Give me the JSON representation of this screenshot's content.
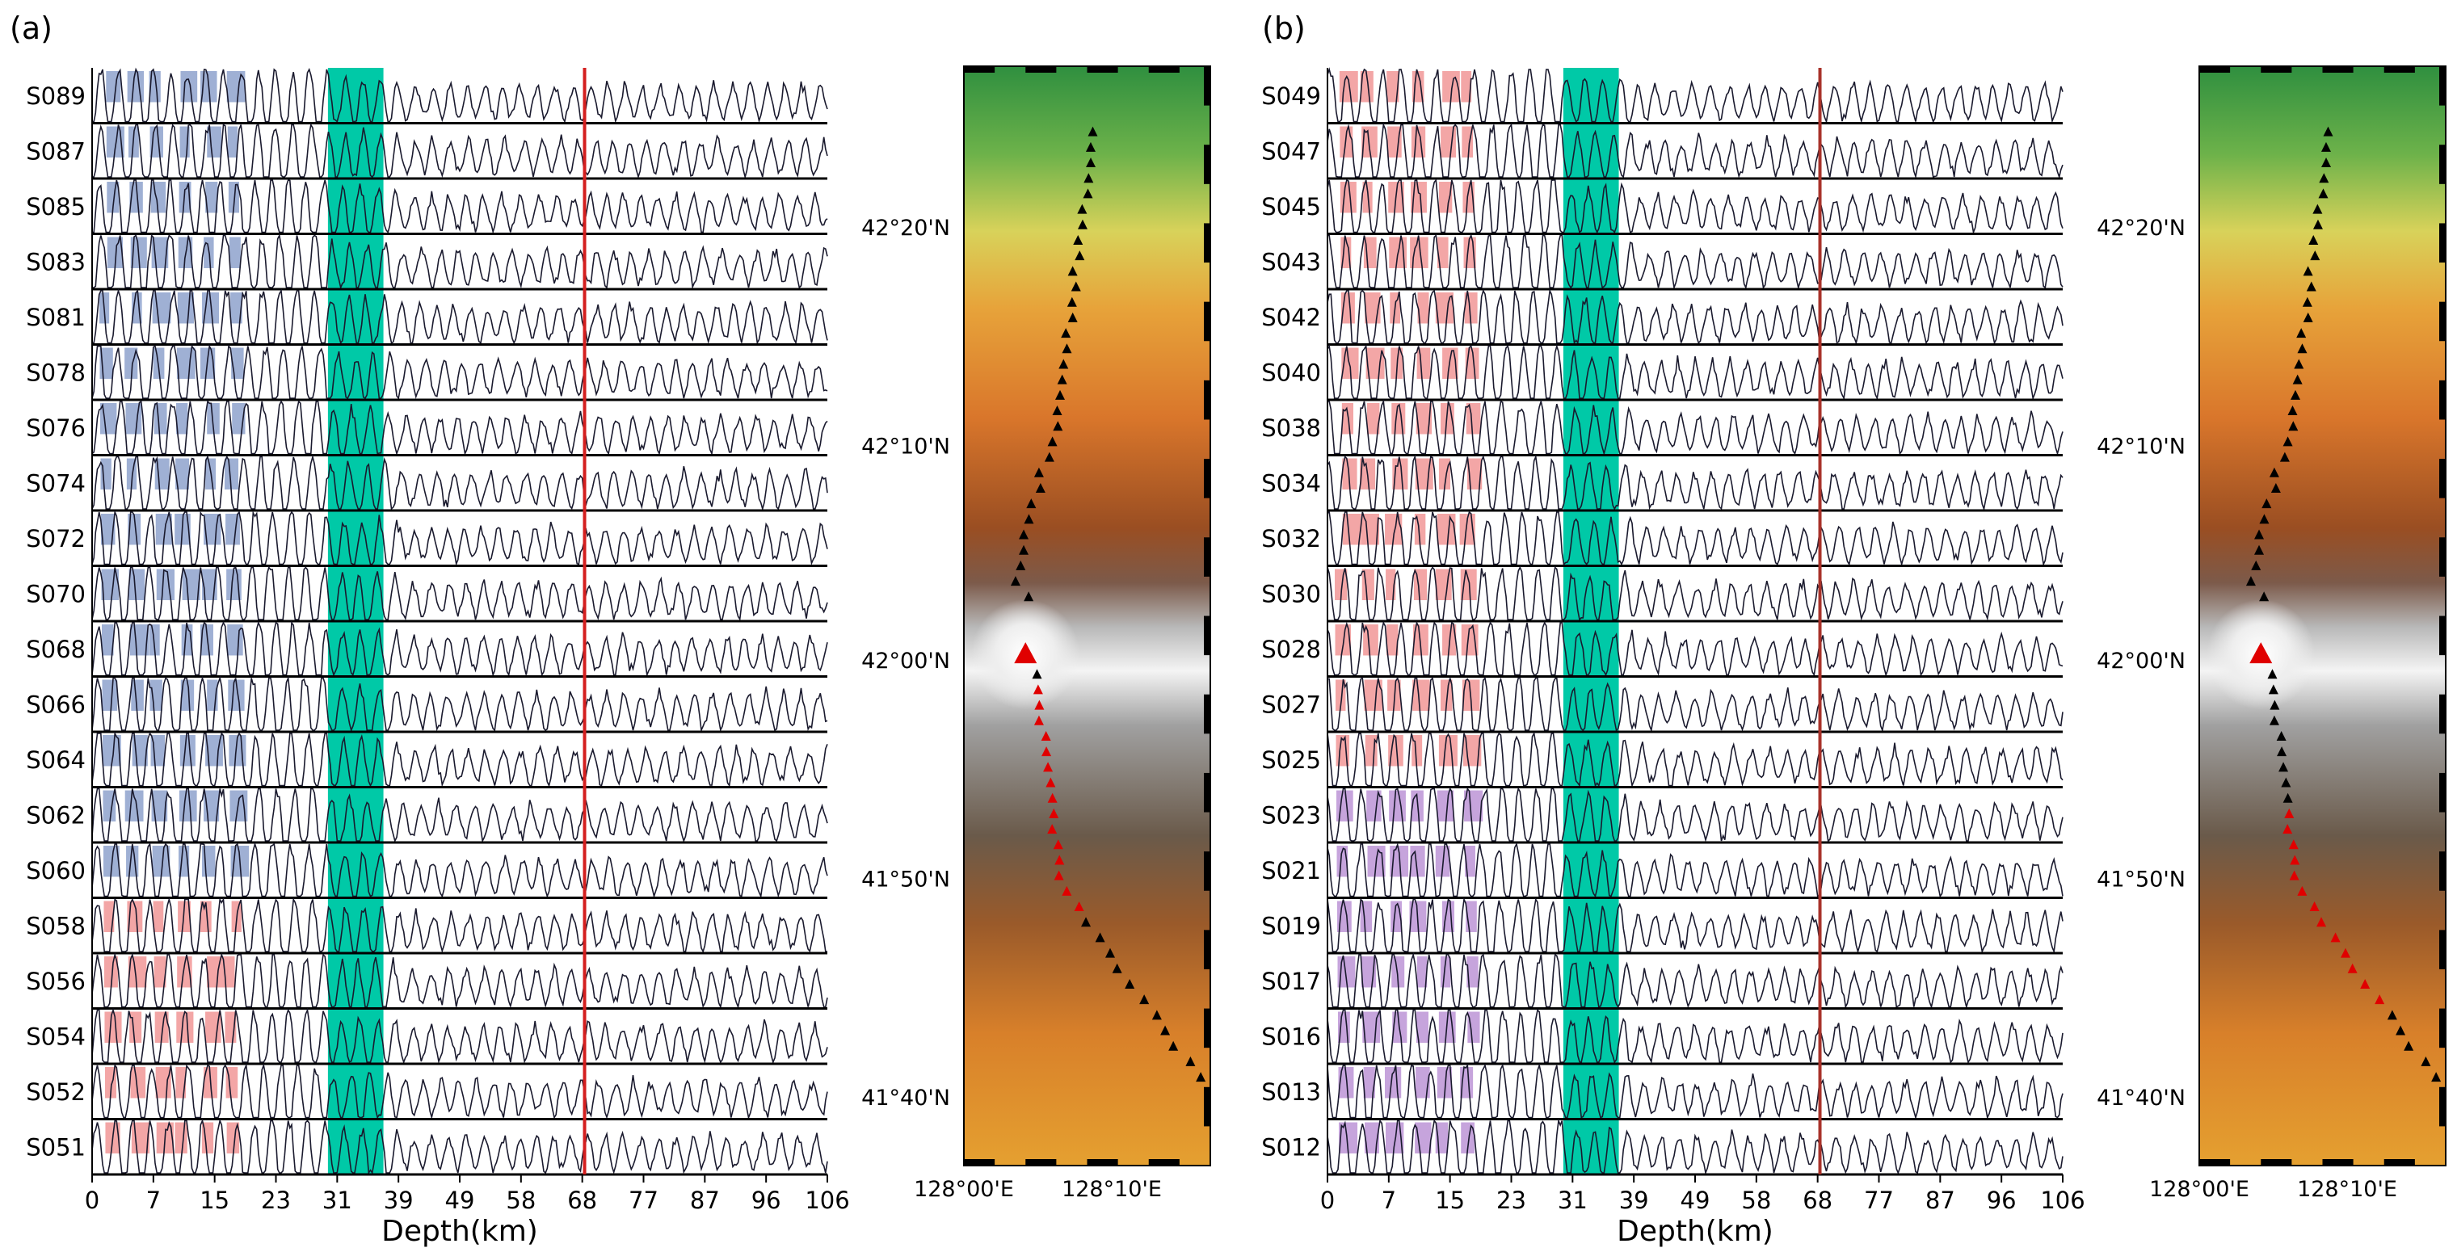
{
  "colors": {
    "panel_a_fill": "#9fb0d4",
    "panel_b_fill_top": "#f3a6a6",
    "panel_b_fill_bottom": "#c6a4dc",
    "panel_a_fill_bottom": "#f3a6a6",
    "highlight_band": "#00c9a7",
    "vertical_line_a": "#d41f1f",
    "vertical_line_b": "#a8322a",
    "highlight_station": "#ff0000",
    "trace_line": "#1a1a2e"
  },
  "chart_data": [
    {
      "type": "line",
      "panel_label": "(a)",
      "title": "",
      "xlabel": "Depth(km)",
      "xlim": [
        0,
        106
      ],
      "xticks": [
        "0",
        "7",
        "15",
        "23",
        "31",
        "39",
        "49",
        "58",
        "68",
        "77",
        "87",
        "96",
        "106"
      ],
      "highlight_band_km": [
        34,
        42
      ],
      "vertical_line_km": 71,
      "highlighted_station": "S058",
      "stations": [
        "S089",
        "S087",
        "S085",
        "S083",
        "S081",
        "S078",
        "S076",
        "S074",
        "S072",
        "S070",
        "S068",
        "S066",
        "S064",
        "S062",
        "S060",
        "S058",
        "S056",
        "S054",
        "S052",
        "S051"
      ],
      "series_note": "receiver-function waveforms per station, upper group blue-filled, from S058 downward red-filled"
    },
    {
      "type": "line",
      "panel_label": "(b)",
      "title": "",
      "xlabel": "Depth(km)",
      "xlim": [
        0,
        106
      ],
      "xticks": [
        "0",
        "7",
        "15",
        "23",
        "31",
        "39",
        "49",
        "58",
        "68",
        "77",
        "87",
        "96",
        "106"
      ],
      "highlight_band_km": [
        34,
        42
      ],
      "vertical_line_km": 71,
      "highlighted_station": "S023",
      "stations": [
        "S049",
        "S047",
        "S045",
        "S043",
        "S042",
        "S040",
        "S038",
        "S034",
        "S032",
        "S030",
        "S028",
        "S027",
        "S025",
        "S023",
        "S021",
        "S019",
        "S017",
        "S016",
        "S013",
        "S012"
      ],
      "series_note": "upper group red-filled, from S023 downward purple-filled"
    }
  ],
  "maps": [
    {
      "lat_labels": [
        "42°20'N",
        "42°10'N",
        "42°00'N",
        "41°50'N",
        "41°40'N"
      ],
      "lon_labels": [
        "128°00'E",
        "128°10'E"
      ],
      "red_stations_from": "S058"
    },
    {
      "lat_labels": [
        "42°20'N",
        "42°10'N",
        "42°00'N",
        "41°50'N",
        "41°40'N"
      ],
      "lon_labels": [
        "128°00'E",
        "128°10'E"
      ],
      "red_stations_from": "S023"
    }
  ]
}
